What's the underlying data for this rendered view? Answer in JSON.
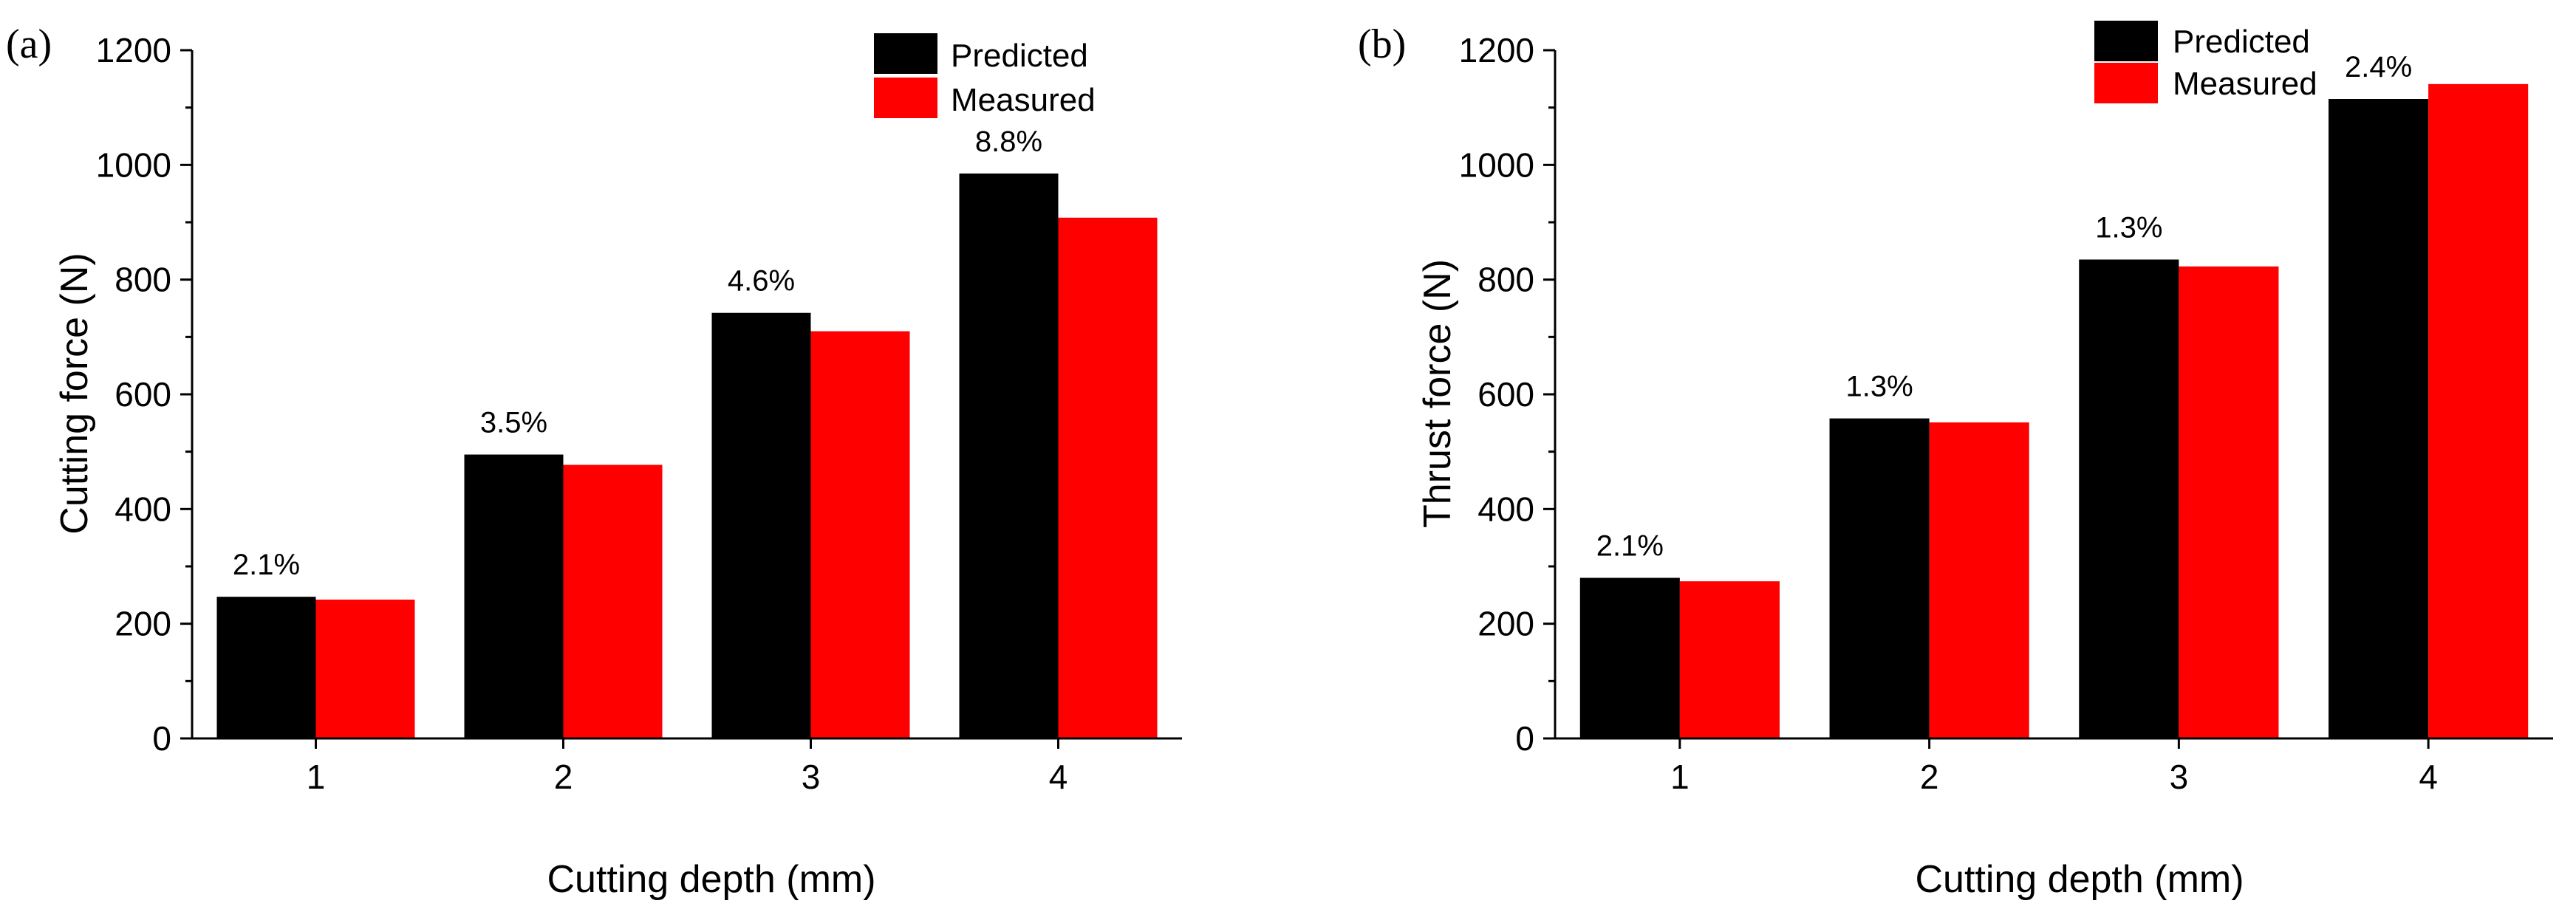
{
  "colors": {
    "predicted": "#000000",
    "measured": "#ff0000",
    "axis": "#000000"
  },
  "chart_data": [
    {
      "panel": "(a)",
      "type": "bar",
      "title": "",
      "xlabel": "Cutting depth (mm)",
      "ylabel": "Cutting force (N)",
      "categories": [
        "1",
        "2",
        "3",
        "4"
      ],
      "ylim": [
        0,
        1200
      ],
      "yticks": [
        0,
        200,
        400,
        600,
        800,
        1000,
        1200
      ],
      "legend": "top-right",
      "series": [
        {
          "name": "Predicted",
          "color_key": "predicted",
          "values": [
            247,
            495,
            742,
            985
          ]
        },
        {
          "name": "Measured",
          "color_key": "measured",
          "values": [
            242,
            477,
            710,
            908
          ]
        }
      ],
      "annotations": [
        "2.1%",
        "3.5%",
        "4.6%",
        "8.8%"
      ]
    },
    {
      "panel": "(b)",
      "type": "bar",
      "title": "",
      "xlabel": "Cutting depth (mm)",
      "ylabel": "Thrust force (N)",
      "categories": [
        "1",
        "2",
        "3",
        "4"
      ],
      "ylim": [
        0,
        1200
      ],
      "yticks": [
        0,
        200,
        400,
        600,
        800,
        1000,
        1200
      ],
      "legend": "top-left",
      "series": [
        {
          "name": "Predicted",
          "color_key": "predicted",
          "values": [
            280,
            558,
            835,
            1115
          ]
        },
        {
          "name": "Measured",
          "color_key": "measured",
          "values": [
            274,
            551,
            823,
            1141
          ]
        }
      ],
      "annotations": [
        "2.1%",
        "1.3%",
        "1.3%",
        "2.4%"
      ]
    }
  ]
}
